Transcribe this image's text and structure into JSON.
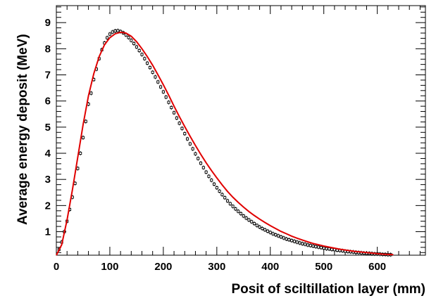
{
  "chart_data": {
    "type": "scatter",
    "title": "",
    "xlabel": "Posit of sciltillation layer (mm)",
    "ylabel": "Average energy deposit (MeV)",
    "xlim": [
      0,
      690
    ],
    "ylim": [
      0.1,
      9.65
    ],
    "x_ticks": [
      0,
      100,
      200,
      300,
      400,
      500,
      600
    ],
    "y_ticks": [
      1,
      2,
      3,
      4,
      5,
      6,
      7,
      8,
      9
    ],
    "grid": false,
    "legend": "none",
    "colors": {
      "points": "#000000",
      "fit": "#e00000"
    },
    "series": [
      {
        "kind": "points",
        "x": [
          5,
          10,
          15,
          20,
          25,
          30,
          35,
          40,
          45,
          50,
          55,
          60,
          65,
          70,
          75,
          80,
          85,
          90,
          95,
          100,
          105,
          110,
          115,
          120,
          125,
          130,
          135,
          140,
          145,
          150,
          155,
          160,
          165,
          170,
          175,
          180,
          185,
          190,
          195,
          200,
          205,
          210,
          215,
          220,
          225,
          230,
          235,
          240,
          245,
          250,
          255,
          260,
          265,
          270,
          275,
          280,
          285,
          290,
          295,
          300,
          305,
          310,
          315,
          320,
          325,
          330,
          335,
          340,
          345,
          350,
          355,
          360,
          365,
          370,
          375,
          380,
          385,
          390,
          395,
          400,
          405,
          410,
          415,
          420,
          425,
          430,
          435,
          440,
          445,
          450,
          455,
          460,
          465,
          470,
          475,
          480,
          485,
          490,
          495,
          500,
          505,
          510,
          515,
          520,
          525,
          530,
          535,
          540,
          545,
          550,
          555,
          560,
          565,
          570,
          575,
          580,
          585,
          590,
          595,
          600,
          605,
          610,
          615,
          620,
          625
        ],
        "y": [
          0.32,
          0.6,
          1.0,
          1.4,
          1.85,
          2.32,
          2.85,
          3.42,
          4.0,
          4.6,
          5.22,
          5.88,
          6.3,
          6.82,
          7.22,
          7.62,
          7.96,
          8.22,
          8.42,
          8.56,
          8.64,
          8.68,
          8.69,
          8.66,
          8.61,
          8.53,
          8.43,
          8.32,
          8.2,
          8.07,
          7.93,
          7.78,
          7.62,
          7.45,
          7.28,
          7.1,
          6.92,
          6.73,
          6.54,
          6.35,
          6.15,
          5.95,
          5.75,
          5.55,
          5.35,
          5.15,
          4.95,
          4.75,
          4.55,
          4.36,
          4.17,
          3.98,
          3.8,
          3.62,
          3.45,
          3.28,
          3.12,
          2.97,
          2.82,
          2.68,
          2.55,
          2.42,
          2.3,
          2.18,
          2.07,
          1.97,
          1.87,
          1.78,
          1.69,
          1.6,
          1.52,
          1.45,
          1.38,
          1.31,
          1.24,
          1.18,
          1.12,
          1.07,
          1.02,
          0.97,
          0.92,
          0.88,
          0.84,
          0.8,
          0.76,
          0.72,
          0.69,
          0.66,
          0.63,
          0.6,
          0.57,
          0.54,
          0.52,
          0.49,
          0.47,
          0.45,
          0.43,
          0.41,
          0.39,
          0.37,
          0.35,
          0.34,
          0.32,
          0.31,
          0.29,
          0.28,
          0.27,
          0.25,
          0.24,
          0.23,
          0.22,
          0.21,
          0.2,
          0.19,
          0.18,
          0.17,
          0.17,
          0.16,
          0.15,
          0.15,
          0.14,
          0.13,
          0.13,
          0.12,
          0.12
        ]
      },
      {
        "kind": "fit-curve",
        "x": [
          0,
          10,
          20,
          30,
          40,
          50,
          60,
          70,
          80,
          90,
          100,
          110,
          120,
          130,
          140,
          150,
          160,
          170,
          180,
          190,
          200,
          210,
          220,
          230,
          240,
          250,
          260,
          270,
          280,
          290,
          300,
          310,
          320,
          330,
          340,
          350,
          360,
          370,
          380,
          390,
          400,
          410,
          420,
          430,
          440,
          450,
          460,
          470,
          480,
          490,
          500,
          510,
          520,
          530,
          540,
          550,
          560,
          570,
          580,
          590,
          600,
          610,
          620,
          630
        ],
        "y": [
          0.1,
          0.5,
          1.45,
          2.6,
          3.85,
          5.1,
          6.2,
          7.05,
          7.7,
          8.15,
          8.42,
          8.57,
          8.63,
          8.6,
          8.48,
          8.27,
          8.0,
          7.7,
          7.37,
          7.0,
          6.62,
          6.22,
          5.8,
          5.4,
          5.02,
          4.65,
          4.3,
          3.96,
          3.64,
          3.34,
          3.06,
          2.79,
          2.54,
          2.32,
          2.12,
          1.94,
          1.77,
          1.62,
          1.48,
          1.35,
          1.23,
          1.12,
          1.01,
          0.92,
          0.83,
          0.75,
          0.68,
          0.61,
          0.55,
          0.5,
          0.45,
          0.41,
          0.37,
          0.33,
          0.3,
          0.27,
          0.24,
          0.22,
          0.2,
          0.18,
          0.16,
          0.14,
          0.13,
          0.12
        ]
      }
    ]
  }
}
